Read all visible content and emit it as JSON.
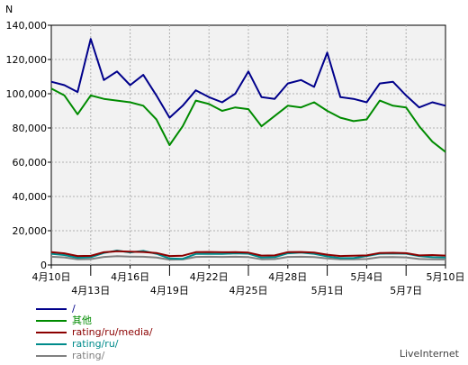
{
  "chart_data": {
    "type": "line",
    "ylabel": "N",
    "ylim": [
      0,
      140000
    ],
    "yticks": [
      "0",
      "20,000",
      "40,000",
      "60,000",
      "80,000",
      "100,000",
      "120,000",
      "140,000"
    ],
    "ytick_values": [
      0,
      20000,
      40000,
      60000,
      80000,
      100000,
      120000,
      140000
    ],
    "x": [
      "4月10日",
      "4月11日",
      "4月12日",
      "4月13日",
      "4月14日",
      "4月15日",
      "4月16日",
      "4月17日",
      "4月18日",
      "4月19日",
      "4月20日",
      "4月21日",
      "4月22日",
      "4月23日",
      "4月24日",
      "4月25日",
      "4月26日",
      "4月27日",
      "4月28日",
      "4月29日",
      "4月30日",
      "5月1日",
      "5月2日",
      "5月3日",
      "5月4日",
      "5月5日",
      "5月6日",
      "5月7日",
      "5月8日",
      "5月9日",
      "5月10日"
    ],
    "xtick_labels": [
      {
        "label": "4月10日",
        "index": 0,
        "row": 0
      },
      {
        "label": "4月13日",
        "index": 3,
        "row": 1
      },
      {
        "label": "4月16日",
        "index": 6,
        "row": 0
      },
      {
        "label": "4月19日",
        "index": 9,
        "row": 1
      },
      {
        "label": "4月22日",
        "index": 12,
        "row": 0
      },
      {
        "label": "4月25日",
        "index": 15,
        "row": 1
      },
      {
        "label": "4月28日",
        "index": 18,
        "row": 0
      },
      {
        "label": "5月1日",
        "index": 21,
        "row": 1
      },
      {
        "label": "5月4日",
        "index": 24,
        "row": 0
      },
      {
        "label": "5月7日",
        "index": 27,
        "row": 1
      },
      {
        "label": "5月10日",
        "index": 30,
        "row": 0
      }
    ],
    "series": [
      {
        "name": "/",
        "color": "#00008b",
        "values": [
          107000,
          105000,
          101000,
          132000,
          108000,
          113000,
          105000,
          111000,
          99000,
          86000,
          93000,
          102000,
          98000,
          95000,
          100000,
          113000,
          98000,
          97000,
          106000,
          108000,
          104000,
          124000,
          98000,
          97000,
          95000,
          106000,
          107000,
          99000,
          92000,
          95000,
          93000
        ]
      },
      {
        "name": "其他",
        "color": "#008b00",
        "values": [
          103000,
          99000,
          88000,
          99000,
          97000,
          96000,
          95000,
          93000,
          85000,
          70000,
          81000,
          96000,
          94000,
          90000,
          92000,
          91000,
          81000,
          87000,
          93000,
          92000,
          95000,
          90000,
          86000,
          84000,
          85000,
          96000,
          93000,
          92000,
          81000,
          72000,
          66000
        ]
      },
      {
        "name": "rating/ru/media/",
        "color": "#8b0000",
        "values": [
          7500,
          6800,
          5200,
          5300,
          7400,
          8000,
          7800,
          7600,
          7000,
          5200,
          5400,
          7500,
          7600,
          7400,
          7500,
          7200,
          5500,
          5600,
          7500,
          7600,
          7200,
          6000,
          5200,
          5400,
          5600,
          7000,
          7100,
          6900,
          5600,
          5800,
          5500
        ]
      },
      {
        "name": "rating/ru/",
        "color": "#008b8b",
        "values": [
          6500,
          5800,
          4200,
          4500,
          7000,
          8400,
          7300,
          8200,
          6500,
          3800,
          3600,
          6400,
          6500,
          6400,
          6800,
          6600,
          4300,
          4500,
          6800,
          7200,
          6500,
          5000,
          4000,
          4000,
          5200,
          6600,
          6700,
          6600,
          5200,
          4500,
          4300
        ]
      },
      {
        "name": "rating/",
        "color": "#808080",
        "values": [
          4800,
          4400,
          3300,
          3400,
          4700,
          5100,
          4900,
          4800,
          4300,
          3100,
          3200,
          4700,
          4800,
          4700,
          4800,
          4600,
          3300,
          3400,
          4700,
          4800,
          4600,
          3800,
          3300,
          3300,
          3500,
          4500,
          4600,
          4400,
          3500,
          3300,
          3200
        ]
      }
    ],
    "grid": true
  },
  "branding": "LiveInternet"
}
